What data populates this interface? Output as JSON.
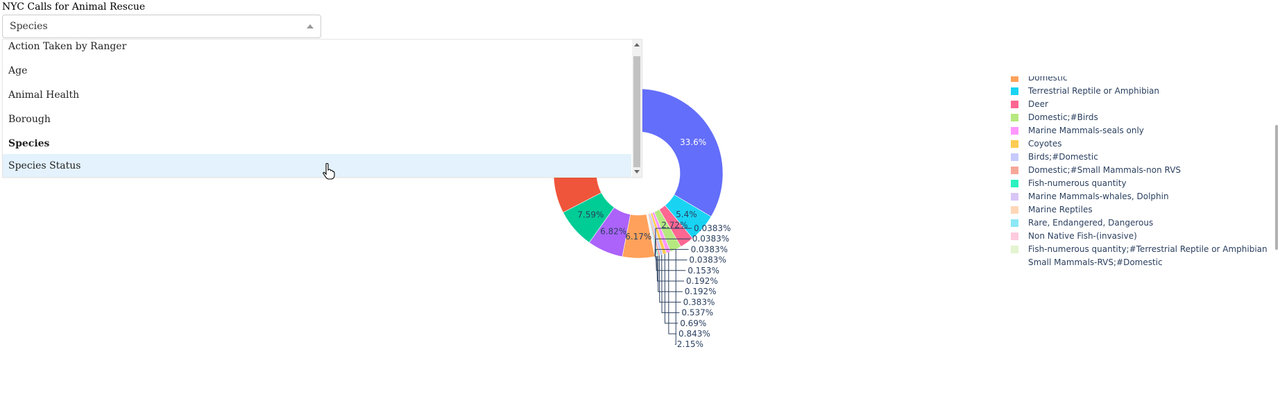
{
  "app": {
    "title": "NYC Calls for Animal Rescue"
  },
  "dropdown": {
    "value": "Species",
    "options": [
      {
        "label": "Action Taken by Ranger",
        "state": "normal"
      },
      {
        "label": "Age",
        "state": "normal"
      },
      {
        "label": "Animal Health",
        "state": "normal"
      },
      {
        "label": "Borough",
        "state": "normal"
      },
      {
        "label": "Species",
        "state": "selected"
      },
      {
        "label": "Species Status",
        "state": "hover"
      }
    ]
  },
  "chart_data": {
    "type": "pie",
    "hole": true,
    "slices": [
      {
        "label": "",
        "value": 33.6,
        "color": "#636efa",
        "text": "33.6%"
      },
      {
        "label": "Terrestrial Reptile or Amphibian",
        "value": 5.4,
        "color": "#19d3f3",
        "text": "5.4%"
      },
      {
        "label": "Deer",
        "value": 2.72,
        "color": "#ff6692",
        "text": "2.72%"
      },
      {
        "label": "Domestic;#Birds",
        "value": 2.15,
        "color": "#b6e880",
        "text": "2.15%"
      },
      {
        "label": "Marine Mammals-seals only",
        "value": 0.843,
        "color": "#ff97ff",
        "text": "0.843%"
      },
      {
        "label": "Coyotes",
        "value": 0.69,
        "color": "#fecb52",
        "text": "0.69%"
      },
      {
        "label": "Birds;#Domestic",
        "value": 0.537,
        "color": "#c6cafd",
        "text": "0.537%"
      },
      {
        "label": "Domestic;#Small Mammals-non RVS",
        "value": 0.383,
        "color": "#f7a799",
        "text": "0.383%"
      },
      {
        "label": "Fish-numerous quantity",
        "value": 0.192,
        "color": "#2bf2c0",
        "text": "0.192%"
      },
      {
        "label": "Marine Mammals-whales, Dolphin",
        "value": 0.192,
        "color": "#d9c6f7",
        "text": "0.192%"
      },
      {
        "label": "Marine Reptiles",
        "value": 0.153,
        "color": "#ffd7b8",
        "text": "0.153%"
      },
      {
        "label": "Rare, Endangered, Dangerous",
        "value": 0.0383,
        "color": "#8be8f6",
        "text": "0.0383%"
      },
      {
        "label": "Non Native Fish-(invasive)",
        "value": 0.0383,
        "color": "#ffcadf",
        "text": "0.0383%"
      },
      {
        "label": "Fish-numerous quantity;#Terrestrial Reptile or Amphibian",
        "value": 0.0383,
        "color": "#e2f4d0",
        "text": "0.0383%"
      },
      {
        "label": "Small Mammals-RVS;#Domestic",
        "value": 0.0383,
        "color": "#ffffff",
        "text": "0.0383%"
      },
      {
        "label": "Domestic",
        "value": 6.17,
        "color": "#ffa15a",
        "text": "6.17%"
      },
      {
        "label": "",
        "value": 6.82,
        "color": "#ab63fa",
        "text": "6.82%"
      },
      {
        "label": "",
        "value": 7.59,
        "color": "#00cc96",
        "text": "7.59%"
      },
      {
        "label": "",
        "value": 32.7,
        "color": "#ef553b",
        "text": ""
      }
    ]
  },
  "legend": {
    "items": [
      {
        "label": "Domestic",
        "color": "#ffa15a"
      },
      {
        "label": "Terrestrial Reptile or Amphibian",
        "color": "#19d3f3"
      },
      {
        "label": "Deer",
        "color": "#ff6692"
      },
      {
        "label": "Domestic;#Birds",
        "color": "#b6e880"
      },
      {
        "label": "Marine Mammals-seals only",
        "color": "#ff97ff"
      },
      {
        "label": "Coyotes",
        "color": "#fecb52"
      },
      {
        "label": "Birds;#Domestic",
        "color": "#c6cafd"
      },
      {
        "label": "Domestic;#Small Mammals-non RVS",
        "color": "#f7a799"
      },
      {
        "label": "Fish-numerous quantity",
        "color": "#2bf2c0"
      },
      {
        "label": "Marine Mammals-whales, Dolphin",
        "color": "#d9c6f7"
      },
      {
        "label": "Marine Reptiles",
        "color": "#ffd7b8"
      },
      {
        "label": "Rare, Endangered, Dangerous",
        "color": "#8be8f6"
      },
      {
        "label": "Non Native Fish-(invasive)",
        "color": "#ffcadf"
      },
      {
        "label": "Fish-numerous quantity;#Terrestrial Reptile or Amphibian",
        "color": "#e2f4d0"
      },
      {
        "label": "Small Mammals-RVS;#Domestic",
        "color": "#ffffff"
      }
    ]
  }
}
